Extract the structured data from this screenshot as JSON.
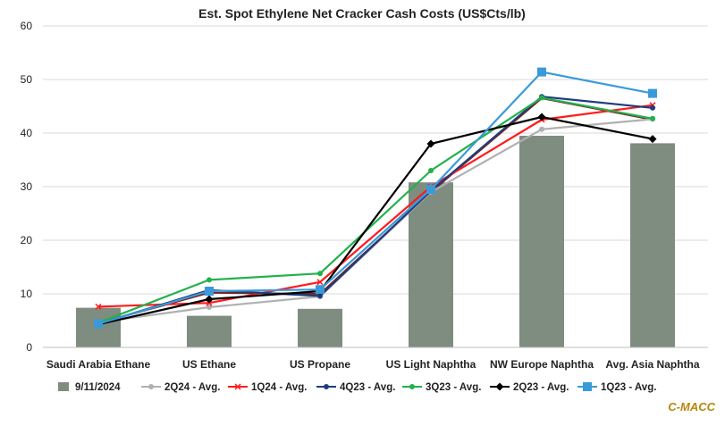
{
  "chart_data": {
    "type": "bar",
    "title": "Est. Spot Ethylene Net Cracker Cash Costs (US$Cts/lb)",
    "xlabel": "",
    "ylabel": "",
    "ylim": [
      0,
      60
    ],
    "yticks": [
      0,
      10,
      20,
      30,
      40,
      50,
      60
    ],
    "yticks_labels": [
      "0",
      "10",
      "20",
      "30",
      "40",
      "50",
      "60"
    ],
    "grid": true,
    "legend_position": "bottom",
    "categories": [
      "Saudi Arabia Ethane",
      "US Ethane",
      "US Propane",
      "US Light Naphtha",
      "NW Europe Naphtha",
      "Avg. Asia Naphtha"
    ],
    "bar_series": {
      "name": "9/11/2024",
      "color": "#7f8c80",
      "values": [
        7.4,
        5.9,
        7.2,
        30.8,
        39.5,
        38.1
      ]
    },
    "series": [
      {
        "name": "2Q24 - Avg.",
        "color": "#b0b0b0",
        "marker": "circle",
        "values": [
          4.7,
          7.5,
          9.5,
          29.0,
          40.7,
          42.6
        ]
      },
      {
        "name": "1Q24 - Avg.",
        "color": "#ff1a1a",
        "marker": "x",
        "values": [
          7.6,
          8.3,
          12.2,
          30.0,
          42.5,
          45.2
        ]
      },
      {
        "name": "4Q23 - Avg.",
        "color": "#1f3d7a",
        "marker": "circle",
        "values": [
          4.4,
          10.7,
          9.6,
          29.2,
          46.8,
          44.7
        ]
      },
      {
        "name": "3Q23 - Avg.",
        "color": "#22b14c",
        "marker": "circle",
        "values": [
          4.6,
          12.6,
          13.8,
          33.0,
          46.6,
          42.7
        ]
      },
      {
        "name": "2Q23 - Avg.",
        "color": "#000000",
        "marker": "diamond",
        "values": [
          4.3,
          9.0,
          10.5,
          38.0,
          43.0,
          38.9
        ]
      },
      {
        "name": "1Q23 - Avg.",
        "color": "#3a9ad9",
        "marker": "square",
        "values": [
          4.4,
          10.5,
          10.8,
          29.5,
          51.4,
          47.4
        ]
      }
    ],
    "dark_red_series": {
      "color": "#7a1f1f",
      "values": [
        4.5,
        10.2,
        10.0,
        29.0,
        46.5,
        42.5
      ]
    }
  },
  "watermark": "C-MACC"
}
